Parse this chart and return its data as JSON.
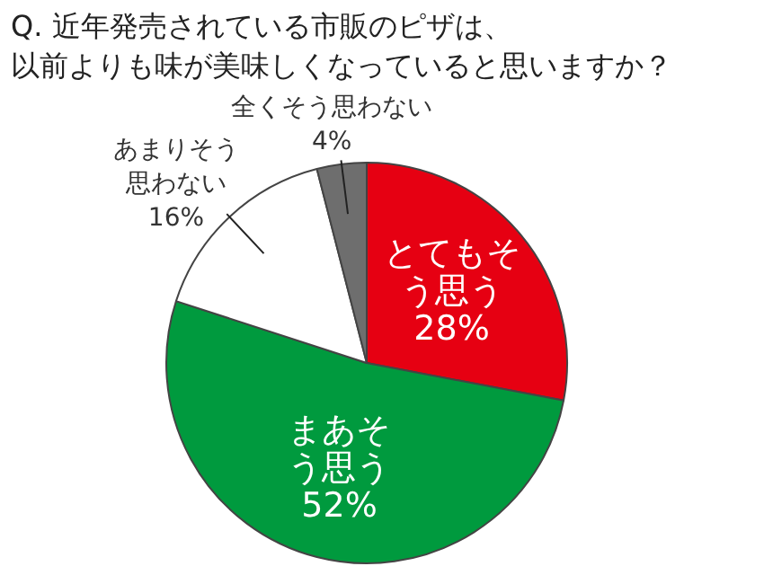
{
  "chart_data": {
    "type": "pie",
    "title": "Q. 近年発売されている市販のピザは、以前よりも味が美味しくなっていると思いますか？",
    "categories": [
      "とてもそう思う",
      "まあそう思う",
      "あまりそう思わない",
      "全くそう思わない"
    ],
    "values": [
      28,
      52,
      16,
      4
    ],
    "value_labels": [
      "28%",
      "52%",
      "16%",
      "4%"
    ],
    "colors": [
      "#e60012",
      "#009a3e",
      "#ffffff",
      "#6e6e6e"
    ],
    "legend": false
  }
}
